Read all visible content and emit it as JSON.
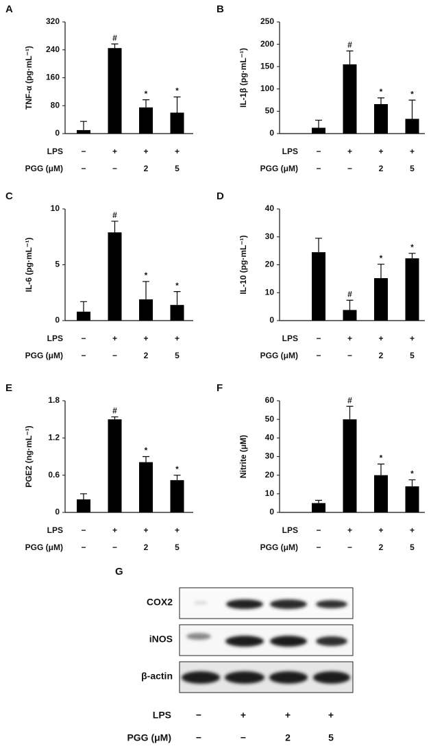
{
  "chart_data": [
    {
      "type": "bar",
      "label": "A",
      "y_label": "TNF-α (pg·mL⁻¹)",
      "values": [
        10,
        245,
        75,
        60
      ],
      "errors": [
        25,
        12,
        22,
        45
      ],
      "annotations": [
        null,
        "#",
        "*",
        "*"
      ],
      "color": "#000000",
      "ylim": [
        0,
        320
      ],
      "yticks": [
        0,
        80,
        160,
        240,
        320
      ],
      "treatment_rows": [
        {
          "label": "LPS",
          "cells": [
            "−",
            "+",
            "+",
            "+"
          ]
        },
        {
          "label": "PGG (μM)",
          "cells": [
            "−",
            "−",
            "2",
            "5"
          ]
        }
      ]
    },
    {
      "type": "bar",
      "label": "B",
      "y_label": "IL-1β (pg·mL⁻¹)",
      "values": [
        13,
        155,
        66,
        33
      ],
      "errors": [
        17,
        30,
        14,
        42
      ],
      "annotations": [
        null,
        "#",
        "*",
        "*"
      ],
      "color": "#000000",
      "ylim": [
        0,
        250
      ],
      "yticks": [
        0,
        50,
        100,
        150,
        200,
        250
      ],
      "treatment_rows": [
        {
          "label": "LPS",
          "cells": [
            "−",
            "+",
            "+",
            "+"
          ]
        },
        {
          "label": "PGG (μM)",
          "cells": [
            "−",
            "−",
            "2",
            "5"
          ]
        }
      ]
    },
    {
      "type": "bar",
      "label": "C",
      "y_label": "IL-6 (pg·mL⁻¹)",
      "values": [
        0.8,
        7.9,
        1.9,
        1.4
      ],
      "errors": [
        0.9,
        1.0,
        1.6,
        1.2
      ],
      "annotations": [
        null,
        "#",
        "*",
        "*"
      ],
      "color": "#000000",
      "ylim": [
        0,
        10
      ],
      "yticks": [
        0,
        5,
        10
      ],
      "treatment_rows": [
        {
          "label": "LPS",
          "cells": [
            "−",
            "+",
            "+",
            "+"
          ]
        },
        {
          "label": "PGG (μM)",
          "cells": [
            "−",
            "−",
            "2",
            "5"
          ]
        }
      ]
    },
    {
      "type": "bar",
      "label": "D",
      "y_label": "IL-10 (pg·mL⁻¹)",
      "values": [
        24.5,
        3.8,
        15.2,
        22.3
      ],
      "errors": [
        5,
        3.5,
        5,
        1.8
      ],
      "annotations": [
        null,
        "#",
        "*",
        "*"
      ],
      "color": "#000000",
      "ylim": [
        0,
        40
      ],
      "yticks": [
        0,
        10,
        20,
        30,
        40
      ],
      "treatment_rows": [
        {
          "label": "LPS",
          "cells": [
            "−",
            "+",
            "+",
            "+"
          ]
        },
        {
          "label": "PGG (μM)",
          "cells": [
            "−",
            "−",
            "2",
            "5"
          ]
        }
      ]
    },
    {
      "type": "bar",
      "label": "E",
      "y_label": "PGE2 (ng·mL⁻¹)",
      "values": [
        0.21,
        1.5,
        0.81,
        0.52
      ],
      "errors": [
        0.09,
        0.04,
        0.09,
        0.08
      ],
      "annotations": [
        null,
        "#",
        "*",
        "*"
      ],
      "color": "#000000",
      "ylim": [
        0,
        1.8
      ],
      "yticks": [
        0,
        0.6,
        1.2,
        1.8
      ],
      "treatment_rows": [
        {
          "label": "LPS",
          "cells": [
            "−",
            "+",
            "+",
            "+"
          ]
        },
        {
          "label": "PGG (μM)",
          "cells": [
            "−",
            "−",
            "2",
            "5"
          ]
        }
      ]
    },
    {
      "type": "bar",
      "label": "F",
      "y_label": "Nitrite (μM)",
      "values": [
        5,
        50,
        20,
        14
      ],
      "errors": [
        1.5,
        7,
        6,
        3.5
      ],
      "annotations": [
        null,
        "#",
        "*",
        "*"
      ],
      "color": "#000000",
      "ylim": [
        0,
        60
      ],
      "yticks": [
        0,
        10,
        20,
        30,
        40,
        50,
        60
      ],
      "treatment_rows": [
        {
          "label": "LPS",
          "cells": [
            "−",
            "+",
            "+",
            "+"
          ]
        },
        {
          "label": "PGG (μM)",
          "cells": [
            "−",
            "−",
            "2",
            "5"
          ]
        }
      ]
    }
  ],
  "blot": {
    "label": "G",
    "proteins": [
      "COX2",
      "iNOS",
      "β-actin"
    ],
    "treatment_rows": [
      {
        "label": "LPS",
        "cells": [
          "−",
          "+",
          "+",
          "+"
        ]
      },
      {
        "label": "PGG (μM)",
        "cells": [
          "−",
          "−",
          "2",
          "5"
        ]
      }
    ]
  }
}
